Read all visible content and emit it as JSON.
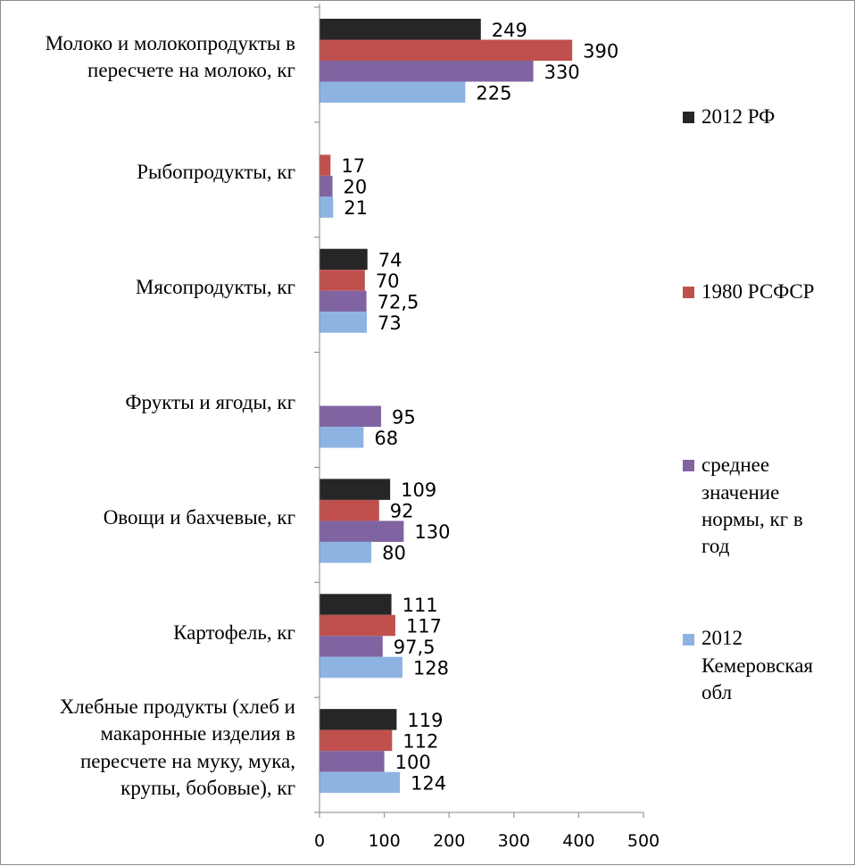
{
  "chart_data": {
    "type": "bar",
    "orientation": "horizontal",
    "categories": [
      "Молоко и молокопродукты в пересчете на молоко, кг",
      "Рыбопродукты, кг",
      "Мясопродукты, кг",
      "Фрукты и ягоды, кг",
      "Овощи и бахчевые, кг",
      "Картофель, кг",
      "Хлебные продукты (хлеб и макаронные изделия в пересчете на муку, мука, крупы, бобовые), кг"
    ],
    "series": [
      {
        "name": "2012 РФ",
        "color": "#262626",
        "values": [
          249,
          null,
          74,
          null,
          109,
          111,
          119
        ],
        "labels": [
          "249",
          "",
          "74",
          "",
          "109",
          "111",
          "119"
        ]
      },
      {
        "name": "1980 РСФСР",
        "color": "#c0504d",
        "values": [
          390,
          17,
          70,
          null,
          92,
          117,
          112
        ],
        "labels": [
          "390",
          "17",
          "70",
          "",
          "92",
          "117",
          "112"
        ]
      },
      {
        "name": "среднее значение нормы, кг в год",
        "color": "#8064a2",
        "values": [
          330,
          20,
          72.5,
          95,
          130,
          97.5,
          100
        ],
        "labels": [
          "330",
          "20",
          "72,5",
          "95",
          "130",
          "97,5",
          "100"
        ]
      },
      {
        "name": "2012 Кемеровская обл",
        "color": "#8db3e2",
        "values": [
          225,
          21,
          73,
          68,
          80,
          128,
          124
        ],
        "labels": [
          "225",
          "21",
          "73",
          "68",
          "80",
          "128",
          "124"
        ]
      }
    ],
    "xlim": [
      0,
      500
    ],
    "xticks": [
      "0",
      "100",
      "200",
      "300",
      "400",
      "500"
    ],
    "grid": false,
    "legend_position": "right",
    "title": "",
    "xlabel": "",
    "ylabel": ""
  },
  "category_lines": [
    [
      "Молоко и молокопродукты в",
      "пересчете на молоко, кг"
    ],
    [
      "Рыбопродукты, кг"
    ],
    [
      "Мясопродукты, кг"
    ],
    [
      "Фрукты и ягоды, кг"
    ],
    [
      "Овощи и бахчевые, кг"
    ],
    [
      "Картофель, кг"
    ],
    [
      "Хлебные продукты (хлеб и",
      "макаронные изделия в",
      "пересчете на муку, мука,",
      "крупы, бобовые), кг"
    ]
  ],
  "legend_lines": [
    [
      "2012 РФ"
    ],
    [
      "1980 РСФСР"
    ],
    [
      "среднее",
      "значение",
      "нормы, кг в",
      "год"
    ],
    [
      "2012",
      "Кемеровская",
      "обл"
    ]
  ]
}
